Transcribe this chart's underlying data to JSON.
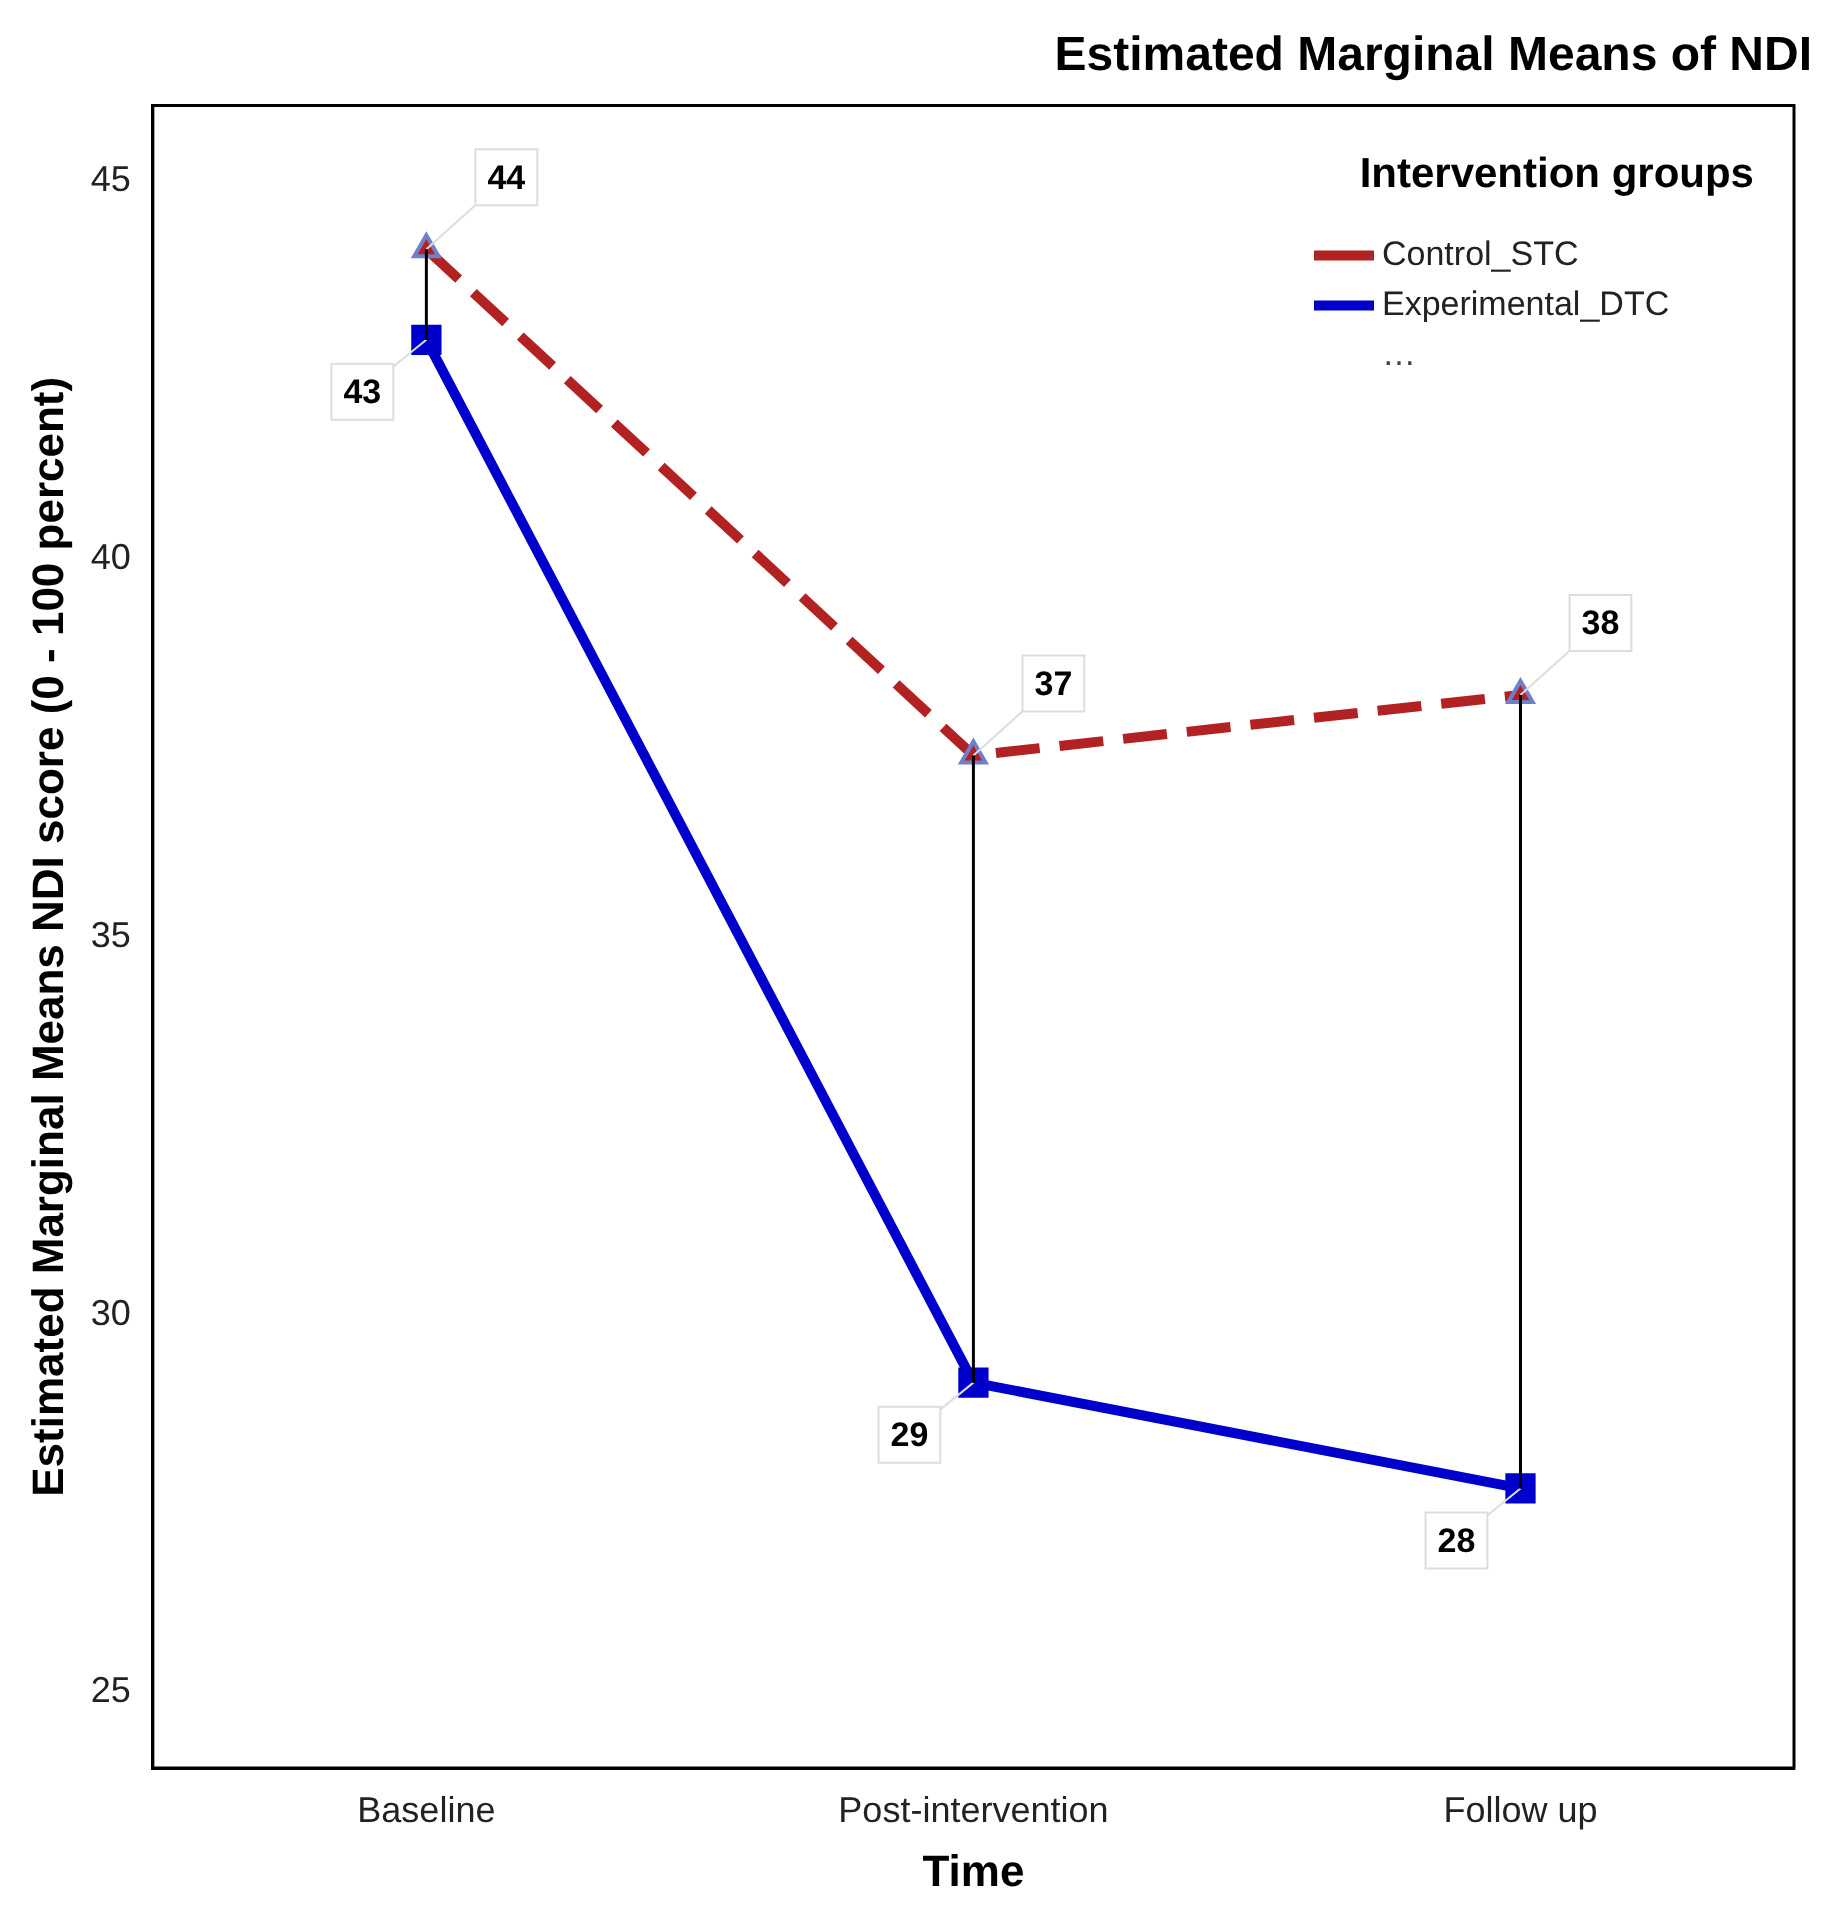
{
  "chart_data": {
    "type": "line",
    "title": "Estimated Marginal Means of NDI",
    "xlabel": "Time",
    "ylabel": "Estimated Marginal Means NDI score (0 - 100 percent)",
    "legend_title": "Intervention groups",
    "categories": [
      "Baseline",
      "Post-intervention",
      "Follow up"
    ],
    "series": [
      {
        "name": "Control_STC",
        "color": "#b22222",
        "values": [
          44.1,
          37.4,
          38.2
        ],
        "value_labels": [
          "44",
          "37",
          "38"
        ],
        "errors": [
          [
            42.9,
            44.1
          ],
          [
            29.1,
            37.4
          ],
          [
            27.7,
            38.2
          ]
        ],
        "line_style": "dashed",
        "marker": "triangle"
      },
      {
        "name": "Experimental_DTC",
        "color": "#0000cc",
        "values": [
          42.9,
          29.1,
          27.7
        ],
        "value_labels": [
          "43",
          "29",
          "28"
        ],
        "line_style": "solid",
        "marker": "square"
      }
    ],
    "annotations": [
      "…"
    ],
    "ylim": [
      24,
      46
    ],
    "yticks": [
      25,
      30,
      35,
      40,
      45
    ],
    "grid": false,
    "legend": "top right"
  }
}
